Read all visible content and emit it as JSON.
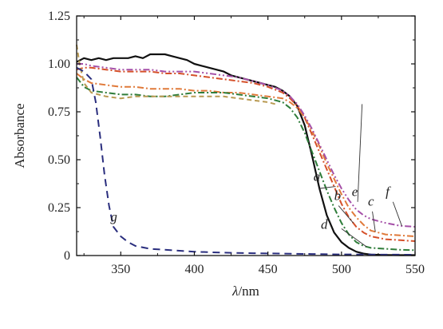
{
  "chart_data": {
    "type": "line",
    "title": "",
    "xlabel": {
      "symbol": "λ",
      "unit": "/nm"
    },
    "ylabel": "Absorbance",
    "xlim": [
      320,
      550
    ],
    "ylim": [
      0,
      1.25
    ],
    "xticks": [
      350,
      400,
      450,
      500,
      550
    ],
    "yticks": [
      "0",
      "0.25",
      "0.50",
      "0.75",
      "1.00",
      "1.25"
    ],
    "grid": false,
    "legend": "inline labels",
    "series": [
      {
        "label": "a",
        "color": "#111111",
        "dash": "solid",
        "points": [
          [
            320,
            1.01
          ],
          [
            325,
            1.03
          ],
          [
            330,
            1.02
          ],
          [
            335,
            1.03
          ],
          [
            340,
            1.02
          ],
          [
            345,
            1.03
          ],
          [
            350,
            1.03
          ],
          [
            355,
            1.03
          ],
          [
            360,
            1.04
          ],
          [
            365,
            1.03
          ],
          [
            370,
            1.05
          ],
          [
            375,
            1.05
          ],
          [
            380,
            1.05
          ],
          [
            385,
            1.04
          ],
          [
            390,
            1.03
          ],
          [
            395,
            1.02
          ],
          [
            400,
            1.0
          ],
          [
            405,
            0.99
          ],
          [
            410,
            0.98
          ],
          [
            415,
            0.97
          ],
          [
            420,
            0.96
          ],
          [
            425,
            0.94
          ],
          [
            430,
            0.93
          ],
          [
            435,
            0.92
          ],
          [
            440,
            0.91
          ],
          [
            445,
            0.9
          ],
          [
            450,
            0.89
          ],
          [
            455,
            0.88
          ],
          [
            460,
            0.86
          ],
          [
            465,
            0.83
          ],
          [
            470,
            0.78
          ],
          [
            475,
            0.68
          ],
          [
            480,
            0.52
          ],
          [
            485,
            0.35
          ],
          [
            490,
            0.21
          ],
          [
            495,
            0.12
          ],
          [
            500,
            0.07
          ],
          [
            505,
            0.04
          ],
          [
            510,
            0.02
          ],
          [
            515,
            0.01
          ],
          [
            520,
            0.005
          ],
          [
            530,
            0.003
          ],
          [
            540,
            0.002
          ],
          [
            550,
            0.002
          ]
        ]
      },
      {
        "label": "b",
        "color": "#d5502a",
        "dash": "dashdot",
        "points": [
          [
            320,
            0.97
          ],
          [
            325,
            0.98
          ],
          [
            330,
            0.98
          ],
          [
            340,
            0.97
          ],
          [
            350,
            0.96
          ],
          [
            360,
            0.96
          ],
          [
            370,
            0.96
          ],
          [
            380,
            0.95
          ],
          [
            390,
            0.95
          ],
          [
            400,
            0.94
          ],
          [
            410,
            0.93
          ],
          [
            420,
            0.92
          ],
          [
            430,
            0.91
          ],
          [
            440,
            0.9
          ],
          [
            450,
            0.88
          ],
          [
            460,
            0.85
          ],
          [
            465,
            0.82
          ],
          [
            470,
            0.78
          ],
          [
            475,
            0.72
          ],
          [
            480,
            0.63
          ],
          [
            485,
            0.54
          ],
          [
            490,
            0.45
          ],
          [
            495,
            0.36
          ],
          [
            500,
            0.27
          ],
          [
            505,
            0.2
          ],
          [
            510,
            0.15
          ],
          [
            515,
            0.12
          ],
          [
            520,
            0.1
          ],
          [
            530,
            0.085
          ],
          [
            540,
            0.08
          ],
          [
            550,
            0.075
          ]
        ]
      },
      {
        "label": "c",
        "color": "#e07a3a",
        "dash": "dashdot",
        "points": [
          [
            320,
            0.95
          ],
          [
            325,
            0.92
          ],
          [
            330,
            0.9
          ],
          [
            340,
            0.89
          ],
          [
            350,
            0.88
          ],
          [
            360,
            0.88
          ],
          [
            370,
            0.87
          ],
          [
            380,
            0.87
          ],
          [
            390,
            0.87
          ],
          [
            400,
            0.86
          ],
          [
            410,
            0.86
          ],
          [
            420,
            0.85
          ],
          [
            430,
            0.85
          ],
          [
            440,
            0.84
          ],
          [
            450,
            0.83
          ],
          [
            460,
            0.82
          ],
          [
            465,
            0.8
          ],
          [
            470,
            0.77
          ],
          [
            475,
            0.72
          ],
          [
            480,
            0.65
          ],
          [
            485,
            0.57
          ],
          [
            490,
            0.48
          ],
          [
            495,
            0.4
          ],
          [
            500,
            0.32
          ],
          [
            505,
            0.25
          ],
          [
            510,
            0.2
          ],
          [
            515,
            0.16
          ],
          [
            520,
            0.13
          ],
          [
            530,
            0.11
          ],
          [
            540,
            0.105
          ],
          [
            550,
            0.1
          ]
        ]
      },
      {
        "label": "d",
        "color": "#2f7d3a",
        "dash": "dashdot",
        "points": [
          [
            320,
            0.93
          ],
          [
            325,
            0.88
          ],
          [
            330,
            0.86
          ],
          [
            340,
            0.85
          ],
          [
            350,
            0.84
          ],
          [
            360,
            0.84
          ],
          [
            370,
            0.83
          ],
          [
            380,
            0.83
          ],
          [
            390,
            0.84
          ],
          [
            400,
            0.85
          ],
          [
            410,
            0.85
          ],
          [
            420,
            0.85
          ],
          [
            430,
            0.84
          ],
          [
            440,
            0.83
          ],
          [
            450,
            0.82
          ],
          [
            460,
            0.8
          ],
          [
            465,
            0.77
          ],
          [
            470,
            0.72
          ],
          [
            475,
            0.64
          ],
          [
            480,
            0.54
          ],
          [
            485,
            0.44
          ],
          [
            490,
            0.34
          ],
          [
            495,
            0.25
          ],
          [
            500,
            0.17
          ],
          [
            505,
            0.11
          ],
          [
            510,
            0.07
          ],
          [
            515,
            0.05
          ],
          [
            520,
            0.04
          ],
          [
            530,
            0.035
          ],
          [
            540,
            0.03
          ],
          [
            550,
            0.028
          ]
        ]
      },
      {
        "label": "e",
        "color": "#b99a52",
        "dash": "dashed",
        "points": [
          [
            320,
            1.1
          ],
          [
            322,
            1.0
          ],
          [
            325,
            0.9
          ],
          [
            330,
            0.85
          ],
          [
            340,
            0.83
          ],
          [
            350,
            0.82
          ],
          [
            360,
            0.83
          ],
          [
            370,
            0.83
          ],
          [
            380,
            0.83
          ],
          [
            390,
            0.83
          ],
          [
            400,
            0.83
          ],
          [
            410,
            0.83
          ],
          [
            420,
            0.83
          ],
          [
            430,
            0.82
          ],
          [
            440,
            0.81
          ],
          [
            450,
            0.8
          ],
          [
            455,
            0.79
          ]
        ]
      },
      {
        "label": "f",
        "color": "#a550a8",
        "dash": "dashdotdot",
        "points": [
          [
            320,
            1.0
          ],
          [
            325,
            1.0
          ],
          [
            330,
            0.99
          ],
          [
            340,
            0.98
          ],
          [
            350,
            0.97
          ],
          [
            360,
            0.97
          ],
          [
            370,
            0.97
          ],
          [
            380,
            0.96
          ],
          [
            390,
            0.96
          ],
          [
            400,
            0.96
          ],
          [
            410,
            0.95
          ],
          [
            420,
            0.94
          ],
          [
            430,
            0.93
          ],
          [
            440,
            0.91
          ],
          [
            450,
            0.89
          ],
          [
            460,
            0.86
          ],
          [
            465,
            0.83
          ],
          [
            470,
            0.79
          ],
          [
            475,
            0.73
          ],
          [
            480,
            0.66
          ],
          [
            485,
            0.58
          ],
          [
            490,
            0.5
          ],
          [
            495,
            0.42
          ],
          [
            500,
            0.35
          ],
          [
            505,
            0.29
          ],
          [
            510,
            0.24
          ],
          [
            515,
            0.21
          ],
          [
            520,
            0.19
          ],
          [
            530,
            0.17
          ],
          [
            540,
            0.155
          ],
          [
            550,
            0.15
          ]
        ]
      },
      {
        "label": "g",
        "color": "#2a2e7e",
        "dash": "longdash",
        "points": [
          [
            320,
            0.98
          ],
          [
            325,
            0.96
          ],
          [
            330,
            0.92
          ],
          [
            333,
            0.8
          ],
          [
            336,
            0.62
          ],
          [
            339,
            0.42
          ],
          [
            342,
            0.26
          ],
          [
            345,
            0.15
          ],
          [
            350,
            0.1
          ],
          [
            355,
            0.07
          ],
          [
            360,
            0.05
          ],
          [
            370,
            0.035
          ],
          [
            380,
            0.03
          ],
          [
            390,
            0.025
          ],
          [
            400,
            0.02
          ],
          [
            420,
            0.015
          ],
          [
            440,
            0.012
          ],
          [
            460,
            0.01
          ],
          [
            480,
            0.008
          ],
          [
            500,
            0.006
          ],
          [
            520,
            0.005
          ],
          [
            550,
            0.004
          ]
        ]
      }
    ],
    "annotations": [
      {
        "text": "a",
        "series": "a"
      },
      {
        "text": "b",
        "series": "b"
      },
      {
        "text": "c",
        "series": "c"
      },
      {
        "text": "d",
        "series": "d"
      },
      {
        "text": "e",
        "series": "e"
      },
      {
        "text": "f",
        "series": "f"
      },
      {
        "text": "g",
        "series": "g"
      }
    ]
  }
}
